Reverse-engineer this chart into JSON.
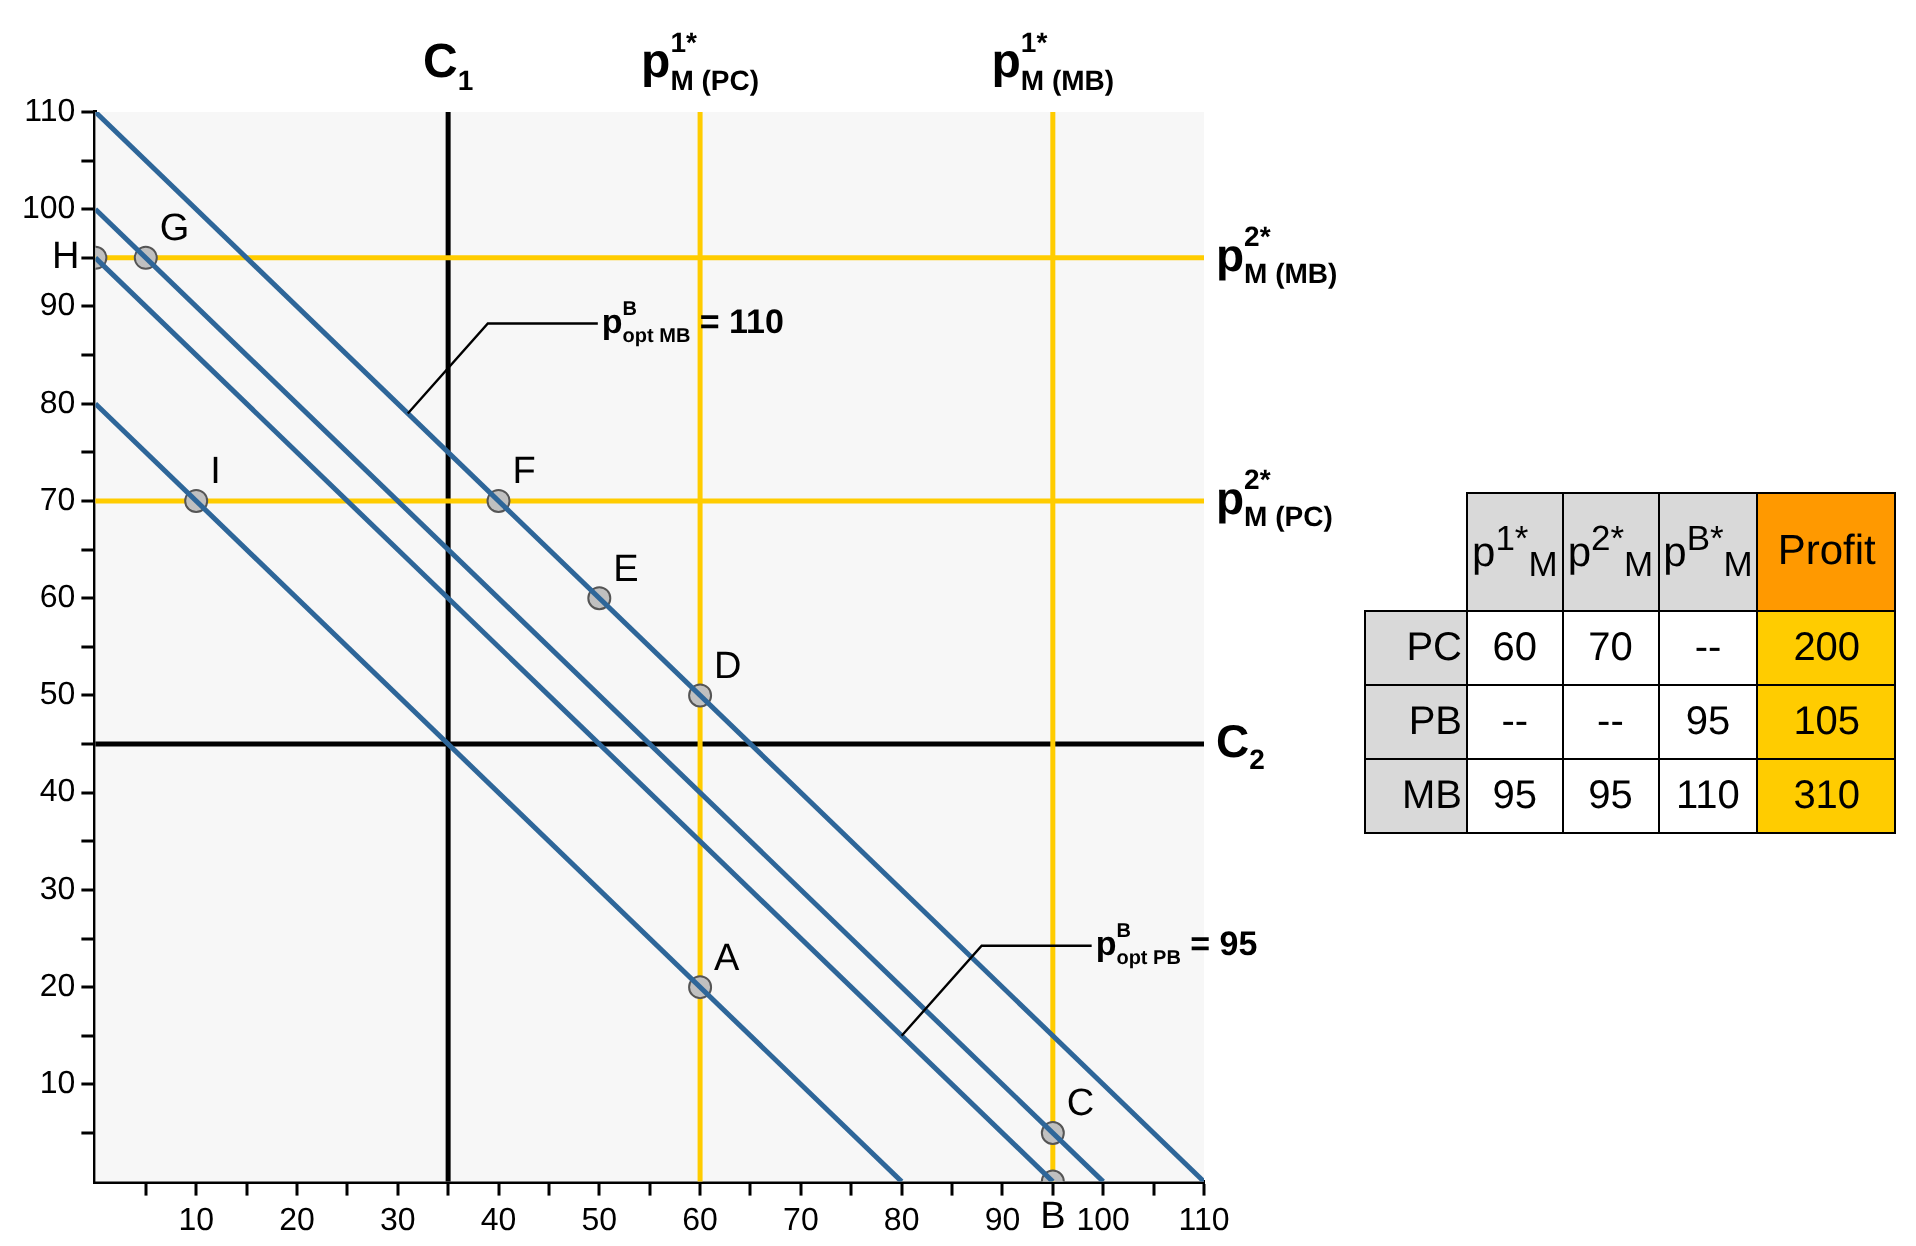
{
  "chart_data": [
    {
      "type": "line",
      "xlim": [
        0,
        110
      ],
      "ylim": [
        0,
        110
      ],
      "xticks": [
        {
          "value": 5,
          "label": null
        },
        10,
        {
          "value": 15,
          "label": null
        },
        20,
        {
          "value": 25,
          "label": null
        },
        30,
        {
          "value": 35,
          "label": null
        },
        40,
        {
          "value": 45,
          "label": null
        },
        50,
        {
          "value": 55,
          "label": null
        },
        60,
        {
          "value": 65,
          "label": null
        },
        70,
        {
          "value": 75,
          "label": null
        },
        80,
        {
          "value": 85,
          "label": null
        },
        90,
        {
          "value": 95,
          "label": null
        },
        100,
        {
          "value": 105,
          "label": null
        },
        110
      ],
      "yticks": [
        {
          "value": 5,
          "label": null
        },
        10,
        {
          "value": 15,
          "label": null
        },
        20,
        {
          "value": 25,
          "label": null
        },
        30,
        {
          "value": 35,
          "label": null
        },
        40,
        {
          "value": 45,
          "label": null
        },
        50,
        {
          "value": 55,
          "label": null
        },
        60,
        {
          "value": 65,
          "label": null
        },
        70,
        {
          "value": 75,
          "label": null
        },
        80,
        {
          "value": 85,
          "label": null
        },
        90,
        {
          "value": 95,
          "label": null
        },
        100,
        {
          "value": 105,
          "label": null
        },
        110
      ],
      "grid": false,
      "legend": false,
      "marker": "none",
      "line_style": "solid",
      "series": [
        {
          "type": "line",
          "color": "#2e6699",
          "x": [
            0,
            110
          ],
          "values": [
            110,
            0
          ]
        },
        {
          "type": "line",
          "color": "#2e6699",
          "x": [
            0,
            100
          ],
          "values": [
            100,
            0
          ]
        },
        {
          "type": "line",
          "color": "#2e6699",
          "x": [
            0,
            95
          ],
          "values": [
            95,
            0
          ]
        },
        {
          "type": "line",
          "color": "#2e6699",
          "x": [
            0,
            80
          ],
          "values": [
            80,
            0
          ]
        },
        {
          "type": "scatter",
          "color": "#c0c0c0",
          "marker": "circle",
          "x": [
            60,
            95,
            95,
            60,
            50,
            40,
            5,
            0,
            10
          ],
          "values": [
            20,
            0,
            5,
            50,
            60,
            70,
            95,
            95,
            70
          ]
        }
      ],
      "ref_lines": [
        {
          "axis": "x",
          "value": 35,
          "label": "C$_{1}$",
          "color": "#000000"
        },
        {
          "axis": "y",
          "value": 45,
          "label": "C$_{2}$",
          "color": "#000000"
        },
        {
          "axis": "x",
          "value": 60,
          "label": "p$^{1*}$$_{M (PC)}$",
          "color": "#ffcc00"
        },
        {
          "axis": "x",
          "value": 95,
          "label": "p$^{1*}$$_{M (MB)}$",
          "color": "#ffcc00"
        },
        {
          "axis": "y",
          "value": 95,
          "label": "p$^{2*}$$_{M (MB)}$",
          "color": "#ffcc00"
        },
        {
          "axis": "y",
          "value": 70,
          "label": "p$^{2*}$$_{M (PC)}$",
          "color": "#ffcc00"
        }
      ],
      "annotations": [
        {
          "text": "A",
          "x": 60,
          "y": 20
        },
        {
          "text": "B",
          "x": 95,
          "y": 0
        },
        {
          "text": "C",
          "x": 95,
          "y": 5
        },
        {
          "text": "D",
          "x": 60,
          "y": 50
        },
        {
          "text": "E",
          "x": 50,
          "y": 60
        },
        {
          "text": "F",
          "x": 40,
          "y": 70
        },
        {
          "text": "G",
          "x": 5,
          "y": 95
        },
        {
          "text": "H",
          "x": 0,
          "y": 95
        },
        {
          "text": "I",
          "x": 10,
          "y": 70
        },
        {
          "text": "p$^{B}$$_{opt MB}$ = 110",
          "x": 31,
          "y": 79
        },
        {
          "text": "p$^{B}$$_{opt PB}$ = 95",
          "x": 80,
          "y": 15
        }
      ]
    },
    {
      "type": "other",
      "categories": [
        "p$^{1*}$$_{M}$",
        "p$^{2*}$$_{M}$",
        "p$^{B*}$$_{M}$",
        "Profit"
      ],
      "y_categories": [
        "PC",
        "PB",
        "MB"
      ],
      "colors": [
        "#d9d9d9",
        "#d9d9d9",
        "#d9d9d9",
        "#ff9900"
      ],
      "cell_labels": [
        [
          "60",
          "70",
          "--",
          "200"
        ],
        [
          "--",
          "--",
          "95",
          "105"
        ],
        [
          "95",
          "95",
          "110",
          "310"
        ]
      ]
    }
  ]
}
